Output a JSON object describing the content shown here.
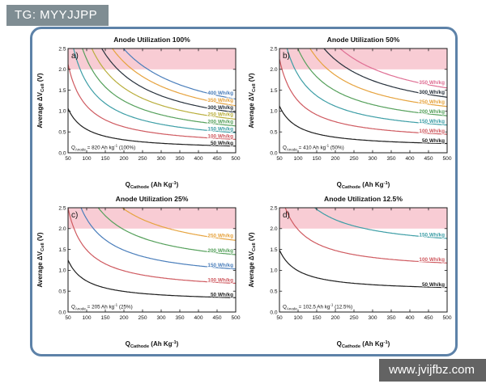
{
  "watermarks": {
    "top": "TG: MYYJJPP",
    "bottom": "www.jvijfbz.com"
  },
  "figure": {
    "frame_border_color": "#5d82a8",
    "band_color": "#f8ccd4",
    "band": {
      "from": 2.0,
      "to": 2.5
    },
    "xlim": [
      50,
      500
    ],
    "ylim": [
      0,
      2.5
    ],
    "xticks": [
      50,
      100,
      150,
      200,
      250,
      300,
      350,
      400,
      450,
      500
    ],
    "yticks": [
      "0.0",
      "0.5",
      "1.0",
      "1.5",
      "2.0",
      "2.5"
    ],
    "xlabel_parts": [
      {
        "t": "Q"
      },
      {
        "t": "Cathode",
        "s": "sub"
      },
      {
        "t": " (Ah Kg",
        "s": ""
      },
      {
        "t": "-1",
        "s": "sup"
      },
      {
        "t": ")",
        "s": ""
      }
    ],
    "ylabel_parts": [
      {
        "t": "Average ΔV"
      },
      {
        "t": "Cell",
        "s": "sub"
      },
      {
        "t": " (V)",
        "s": ""
      }
    ],
    "curve_model": "V = E × (1/Q_cathode + 1/Q_anode)"
  },
  "chart_data": [
    {
      "type": "line",
      "panel_label": "a)",
      "title": "Anode Utilization 100%",
      "q_anode_ah_per_kg": 820,
      "annotation_parts": [
        {
          "t": "Q"
        },
        {
          "t": "Anode",
          "s": "sub"
        },
        {
          "t": " = 820 Ah kg",
          "s": ""
        },
        {
          "t": "-1",
          "s": "sup"
        },
        {
          "t": " (100%)",
          "s": ""
        }
      ],
      "series": [
        {
          "name": "400 Wh/kg",
          "energy_wh_per_kg": 400,
          "color": "#4a7ebb"
        },
        {
          "name": "350 Wh/kg",
          "energy_wh_per_kg": 350,
          "color": "#e6a33e"
        },
        {
          "name": "300 Wh/kg",
          "energy_wh_per_kg": 300,
          "color": "#27313c"
        },
        {
          "name": "250 Wh/kg",
          "energy_wh_per_kg": 250,
          "color": "#b9ae3c"
        },
        {
          "name": "200 Wh/kg",
          "energy_wh_per_kg": 200,
          "color": "#55a05b"
        },
        {
          "name": "150 Wh/kg",
          "energy_wh_per_kg": 150,
          "color": "#3d9ea6"
        },
        {
          "name": "100 Wh/kg",
          "energy_wh_per_kg": 100,
          "color": "#cf5a60"
        },
        {
          "name": "50 Wh/kg",
          "energy_wh_per_kg": 50,
          "color": "#1d1d1d"
        }
      ]
    },
    {
      "type": "line",
      "panel_label": "b)",
      "title": "Anode Utilization 50%",
      "q_anode_ah_per_kg": 410,
      "annotation_parts": [
        {
          "t": "Q"
        },
        {
          "t": "Anode",
          "s": "sub"
        },
        {
          "t": " = 410 Ah kg",
          "s": ""
        },
        {
          "t": "-1",
          "s": "sup"
        },
        {
          "t": " (50%)",
          "s": ""
        }
      ],
      "series": [
        {
          "name": "350 Wh/kg",
          "energy_wh_per_kg": 350,
          "color": "#df6e93"
        },
        {
          "name": "300 Wh/kg",
          "energy_wh_per_kg": 300,
          "color": "#27313c"
        },
        {
          "name": "250 Wh/kg",
          "energy_wh_per_kg": 250,
          "color": "#e6a33e"
        },
        {
          "name": "200 Wh/kg",
          "energy_wh_per_kg": 200,
          "color": "#55a05b"
        },
        {
          "name": "150 Wh/kg",
          "energy_wh_per_kg": 150,
          "color": "#3d9ea6"
        },
        {
          "name": "100 Wh/kg",
          "energy_wh_per_kg": 100,
          "color": "#cf5a60"
        },
        {
          "name": "50 Wh/kg",
          "energy_wh_per_kg": 50,
          "color": "#1d1d1d"
        }
      ]
    },
    {
      "type": "line",
      "panel_label": "c)",
      "title": "Anode Utilization 25%",
      "q_anode_ah_per_kg": 205,
      "annotation_parts": [
        {
          "t": "Q"
        },
        {
          "t": "Anode",
          "s": "sub"
        },
        {
          "t": " = 205 Ah kg",
          "s": ""
        },
        {
          "t": "-1",
          "s": "sup"
        },
        {
          "t": " (25%)",
          "s": ""
        }
      ],
      "series": [
        {
          "name": "250 Wh/kg",
          "energy_wh_per_kg": 250,
          "color": "#e6a33e"
        },
        {
          "name": "200 Wh/kg",
          "energy_wh_per_kg": 200,
          "color": "#55a05b"
        },
        {
          "name": "150 Wh/kg",
          "energy_wh_per_kg": 150,
          "color": "#4a7ebb"
        },
        {
          "name": "100 Wh/kg",
          "energy_wh_per_kg": 100,
          "color": "#cf5a60"
        },
        {
          "name": "50 Wh/kg",
          "energy_wh_per_kg": 50,
          "color": "#1d1d1d"
        }
      ]
    },
    {
      "type": "line",
      "panel_label": "d)",
      "title": "Anode Utilization 12.5%",
      "q_anode_ah_per_kg": 102.5,
      "annotation_parts": [
        {
          "t": "Q"
        },
        {
          "t": "Anode",
          "s": "sub"
        },
        {
          "t": " = 102.5 Ah kg",
          "s": ""
        },
        {
          "t": "-1",
          "s": "sup"
        },
        {
          "t": " (12.5%)",
          "s": ""
        }
      ],
      "series": [
        {
          "name": "150 Wh/kg",
          "energy_wh_per_kg": 150,
          "color": "#3d9ea6"
        },
        {
          "name": "100 Wh/kg",
          "energy_wh_per_kg": 100,
          "color": "#cf5a60"
        },
        {
          "name": "50 Wh/kg",
          "energy_wh_per_kg": 50,
          "color": "#1d1d1d"
        }
      ]
    }
  ]
}
